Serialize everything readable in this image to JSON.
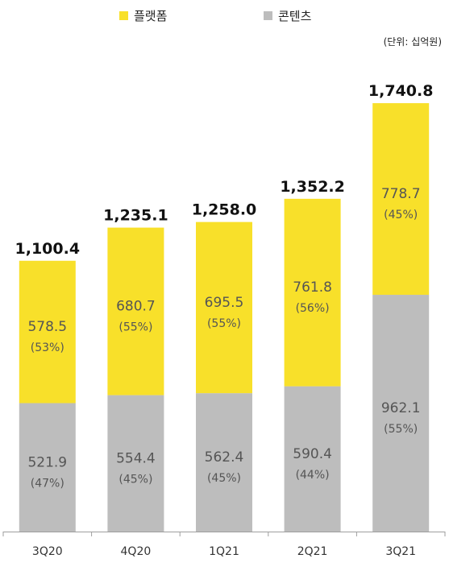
{
  "colors": {
    "platform": "#F8E02A",
    "content": "#BDBDBD",
    "axis": "#9E9E9E"
  },
  "legend": {
    "platform": "플랫폼",
    "content": "콘텐츠"
  },
  "unit_note": "(단위: 십억원)",
  "chart_data": {
    "type": "bar",
    "stacked": true,
    "categories": [
      "3Q20",
      "4Q20",
      "1Q21",
      "2Q21",
      "3Q21"
    ],
    "series": [
      {
        "name": "콘텐츠",
        "values": [
          521.9,
          554.4,
          562.4,
          590.4,
          962.1
        ],
        "shares": [
          "(47%)",
          "(45%)",
          "(45%)",
          "(44%)",
          "(55%)"
        ]
      },
      {
        "name": "플랫폼",
        "values": [
          578.5,
          680.7,
          695.5,
          761.8,
          778.7
        ],
        "shares": [
          "(53%)",
          "(55%)",
          "(55%)",
          "(56%)",
          "(45%)"
        ]
      }
    ],
    "totals": [
      "1,100.4",
      "1,235.1",
      "1,258.0",
      "1,352.2",
      "1,740.8"
    ],
    "ylim": [
      0,
      1800
    ],
    "grid": false,
    "legend_position": "top"
  }
}
